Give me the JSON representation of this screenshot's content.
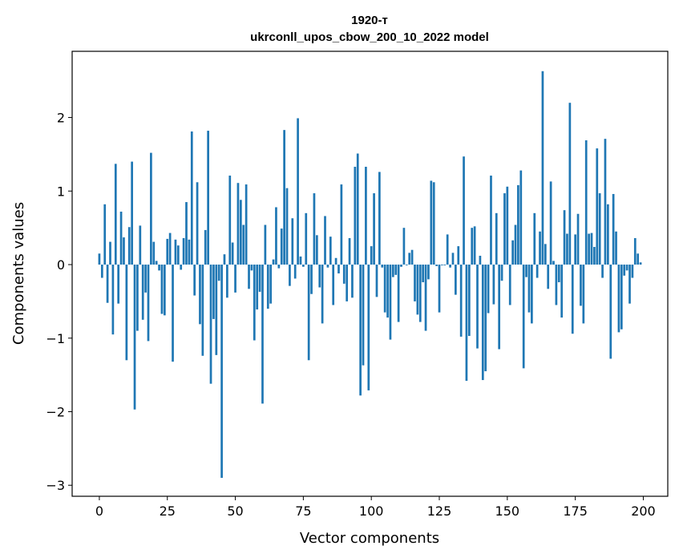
{
  "chart_data": {
    "type": "bar",
    "title": "1920-т",
    "subtitle": "ukrconll_upos_cbow_200_10_2022 model",
    "xlabel": "Vector components",
    "ylabel": "Components values",
    "xlim": [
      -10,
      209
    ],
    "ylim": [
      -3.15,
      2.9
    ],
    "xticks": [
      0,
      25,
      50,
      75,
      100,
      125,
      150,
      175,
      200
    ],
    "yticks": [
      -3,
      -2,
      -1,
      0,
      1,
      2
    ],
    "ytick_labels": [
      "−3",
      "−2",
      "−1",
      "0",
      "1",
      "2"
    ],
    "bar_color": "#1f77b4",
    "grid": false,
    "values": [
      0.15,
      -0.18,
      0.82,
      -0.52,
      0.31,
      -0.95,
      1.37,
      -0.53,
      0.72,
      0.37,
      -1.3,
      0.51,
      1.4,
      -1.97,
      -0.9,
      0.53,
      -0.75,
      -0.38,
      -1.04,
      1.52,
      0.31,
      0.05,
      -0.08,
      -0.67,
      -0.69,
      0.35,
      0.43,
      -1.32,
      0.34,
      0.26,
      -0.07,
      0.36,
      0.85,
      0.34,
      1.81,
      -0.42,
      1.12,
      -0.81,
      -1.24,
      0.47,
      1.82,
      -1.62,
      -0.74,
      -1.23,
      -0.22,
      -2.9,
      0.14,
      -0.45,
      1.21,
      0.3,
      -0.38,
      1.11,
      0.88,
      0.54,
      1.09,
      -0.33,
      -0.08,
      -1.03,
      -0.61,
      -0.37,
      -1.89,
      0.54,
      -0.6,
      -0.53,
      0.07,
      0.78,
      -0.05,
      0.49,
      1.83,
      1.04,
      -0.29,
      0.63,
      -0.19,
      1.99,
      0.11,
      -0.03,
      0.7,
      -1.3,
      -0.4,
      0.97,
      0.4,
      -0.31,
      -0.8,
      0.66,
      -0.04,
      0.38,
      -0.55,
      0.09,
      -0.12,
      1.09,
      -0.26,
      -0.5,
      0.36,
      -0.45,
      1.33,
      1.51,
      -1.78,
      -1.37,
      1.33,
      -1.71,
      0.25,
      0.97,
      -0.44,
      1.26,
      -0.04,
      -0.65,
      -0.72,
      -1.02,
      -0.17,
      -0.14,
      -0.78,
      -0.03,
      0.5,
      -0.01,
      0.16,
      0.2,
      -0.5,
      -0.68,
      -0.78,
      -0.24,
      -0.9,
      -0.2,
      1.14,
      1.12,
      -0.02,
      -0.65,
      -0.01,
      -0.01,
      0.41,
      -0.04,
      0.16,
      -0.41,
      0.25,
      -0.98,
      1.47,
      -1.58,
      -0.97,
      0.5,
      0.52,
      -1.14,
      0.12,
      -1.57,
      -1.45,
      -0.66,
      1.21,
      -0.54,
      0.7,
      -1.15,
      -0.22,
      0.97,
      1.06,
      -0.55,
      0.33,
      0.54,
      1.08,
      1.28,
      -1.41,
      -0.17,
      -0.65,
      -0.8,
      0.7,
      -0.18,
      0.45,
      2.63,
      0.28,
      -0.33,
      1.13,
      0.05,
      -0.55,
      -0.24,
      -0.72,
      0.74,
      0.42,
      2.2,
      -0.94,
      0.41,
      0.69,
      -0.56,
      -0.8,
      1.69,
      0.42,
      0.43,
      0.24,
      1.58,
      0.97,
      -0.18,
      1.71,
      0.82,
      -1.28,
      0.96,
      0.45,
      -0.92,
      -0.88,
      -0.15,
      -0.08,
      -0.53,
      -0.18,
      0.36,
      0.15,
      0.03
    ]
  }
}
